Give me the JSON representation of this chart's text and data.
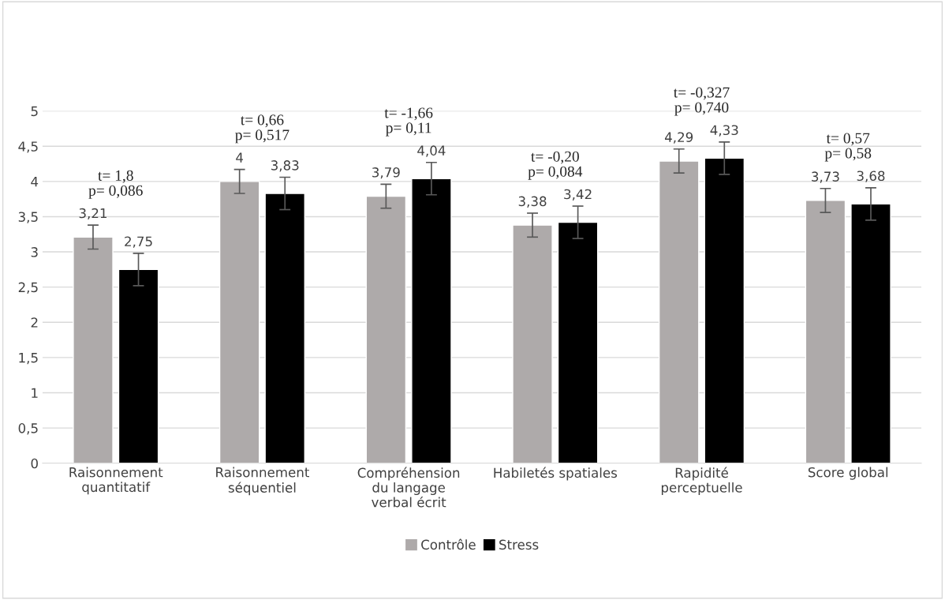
{
  "chart_data": {
    "type": "bar",
    "categories": [
      "Raisonnement\nquantitatif",
      "Raisonnement\nséquentiel",
      "Compréhension\ndu langage\nverbal écrit",
      "Habiletés spatiales",
      "Rapidité\nperceptuelle",
      "Score global"
    ],
    "series": [
      {
        "name": "Contrôle",
        "color": "#aeaaaa",
        "values": [
          3.21,
          4,
          3.79,
          3.38,
          4.29,
          3.73
        ],
        "errors": [
          0.17,
          0.17,
          0.17,
          0.17,
          0.17,
          0.17
        ],
        "value_labels": [
          "3,21",
          "4",
          "3,79",
          "3,38",
          "4,29",
          "3,73"
        ]
      },
      {
        "name": "Stress",
        "color": "#000000",
        "values": [
          2.75,
          3.83,
          4.04,
          3.42,
          4.33,
          3.68
        ],
        "errors": [
          0.23,
          0.23,
          0.23,
          0.23,
          0.23,
          0.23
        ],
        "value_labels": [
          "2,75",
          "3,83",
          "4,04",
          "3,42",
          "4,33",
          "3,68"
        ]
      }
    ],
    "ylim": [
      0,
      5
    ],
    "yticks": [
      0,
      {
        "value": 0.5,
        "label": "0,5"
      },
      1,
      {
        "value": 1.5,
        "label": "1,5"
      },
      2,
      {
        "value": 2.5,
        "label": "2,5"
      },
      3,
      {
        "value": 3.5,
        "label": "3,5"
      },
      4,
      {
        "value": 4.5,
        "label": "4,5"
      },
      5
    ],
    "grid": "y",
    "legend": "bottom",
    "annotations": [
      "t= 1,8\np= 0,086",
      "t= 0,66\np= 0,517",
      "t= -1,66\np= 0,11",
      "t= -0,20\np= 0,084",
      "t= -0,327\np= 0,740",
      "t= 0,57\np= 0,58"
    ]
  }
}
